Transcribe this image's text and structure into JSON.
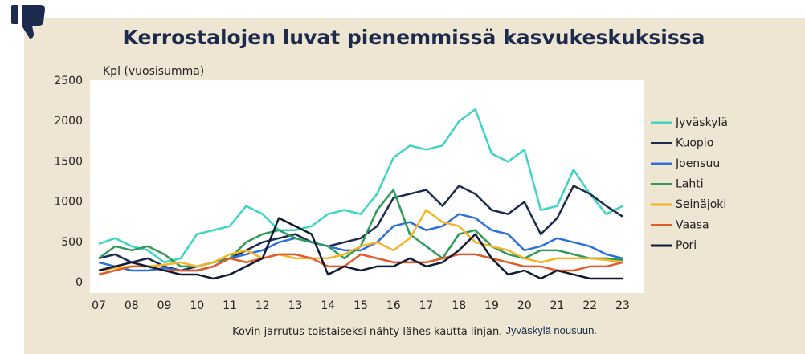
{
  "chart_data": {
    "type": "line",
    "title": "Kerrostalojen luvat pienemmissä kasvukeskuksissa",
    "y_label": "Kpl (vuosisumma)",
    "caption": "Kovin jarrutus toistaiseksi nähty lähes kautta linjan.",
    "caption_highlight": "Jyväskylä nousuun.",
    "x": [
      2007,
      2007.5,
      2008,
      2008.5,
      2009,
      2009.5,
      2010,
      2010.5,
      2011,
      2011.5,
      2012,
      2012.5,
      2013,
      2013.5,
      2014,
      2014.5,
      2015,
      2015.5,
      2016,
      2016.5,
      2017,
      2017.5,
      2018,
      2018.5,
      2019,
      2019.5,
      2020,
      2020.5,
      2021,
      2021.5,
      2022,
      2022.5,
      2023
    ],
    "xlim": [
      2007,
      2023.9
    ],
    "xticks": [
      {
        "value": 2007,
        "label": "07"
      },
      {
        "value": 2008,
        "label": "08"
      },
      {
        "value": 2009,
        "label": "09"
      },
      {
        "value": 2010,
        "label": "10"
      },
      {
        "value": 2011,
        "label": "11"
      },
      {
        "value": 2012,
        "label": "12"
      },
      {
        "value": 2013,
        "label": "13"
      },
      {
        "value": 2014,
        "label": "14"
      },
      {
        "value": 2015,
        "label": "15"
      },
      {
        "value": 2016,
        "label": "16"
      },
      {
        "value": 2017,
        "label": "17"
      },
      {
        "value": 2018,
        "label": "18"
      },
      {
        "value": 2019,
        "label": "19"
      },
      {
        "value": 2020,
        "label": "20"
      },
      {
        "value": 2021,
        "label": "21"
      },
      {
        "value": 2022,
        "label": "22"
      },
      {
        "value": 2023,
        "label": "23"
      }
    ],
    "ylim": [
      0,
      2500
    ],
    "yticks": [
      0,
      500,
      1000,
      1500,
      2000,
      2500
    ],
    "grid": false,
    "legend": "right",
    "series": [
      {
        "name": "Jyväskylä",
        "color": "#3fd4c3",
        "values": [
          480,
          550,
          450,
          400,
          250,
          300,
          600,
          650,
          700,
          950,
          850,
          650,
          650,
          700,
          850,
          900,
          850,
          1100,
          1550,
          1700,
          1650,
          1700,
          2000,
          2150,
          1600,
          1500,
          1650,
          900,
          950,
          1400,
          1100,
          850,
          950
        ]
      },
      {
        "name": "Kuopio",
        "color": "#1c2b4d",
        "values": [
          300,
          350,
          250,
          300,
          200,
          150,
          200,
          250,
          300,
          400,
          500,
          550,
          600,
          500,
          450,
          500,
          550,
          700,
          1050,
          1100,
          1150,
          950,
          1200,
          1100,
          900,
          850,
          1000,
          600,
          800,
          1200,
          1100,
          950,
          820
        ]
      },
      {
        "name": "Joensuu",
        "color": "#2f6fd8",
        "values": [
          250,
          200,
          150,
          150,
          180,
          150,
          150,
          200,
          300,
          350,
          400,
          500,
          550,
          500,
          450,
          400,
          400,
          500,
          700,
          750,
          650,
          700,
          850,
          800,
          650,
          600,
          400,
          450,
          550,
          500,
          450,
          350,
          300
        ]
      },
      {
        "name": "Lahti",
        "color": "#2f9a5a",
        "values": [
          300,
          450,
          400,
          450,
          350,
          200,
          200,
          250,
          300,
          500,
          600,
          650,
          550,
          500,
          450,
          300,
          450,
          900,
          1150,
          600,
          450,
          300,
          600,
          650,
          450,
          350,
          300,
          400,
          400,
          350,
          300,
          300,
          280
        ]
      },
      {
        "name": "Seinäjoki",
        "color": "#f2b52a",
        "values": [
          150,
          180,
          200,
          200,
          220,
          250,
          200,
          250,
          350,
          400,
          300,
          350,
          300,
          300,
          300,
          350,
          450,
          500,
          400,
          550,
          900,
          750,
          700,
          500,
          450,
          400,
          300,
          250,
          300,
          300,
          300,
          280,
          250
        ]
      },
      {
        "name": "Vaasa",
        "color": "#e35a2b",
        "values": [
          100,
          150,
          200,
          200,
          150,
          150,
          150,
          200,
          300,
          250,
          300,
          350,
          350,
          300,
          200,
          200,
          350,
          300,
          250,
          250,
          250,
          300,
          350,
          350,
          300,
          250,
          200,
          200,
          150,
          150,
          200,
          200,
          250
        ]
      },
      {
        "name": "Pori",
        "color": "#0f1a33",
        "values": [
          150,
          200,
          250,
          200,
          150,
          100,
          100,
          50,
          100,
          200,
          300,
          800,
          700,
          600,
          100,
          200,
          150,
          200,
          200,
          300,
          200,
          250,
          400,
          600,
          300,
          100,
          150,
          50,
          150,
          100,
          50,
          50,
          50
        ]
      }
    ]
  }
}
